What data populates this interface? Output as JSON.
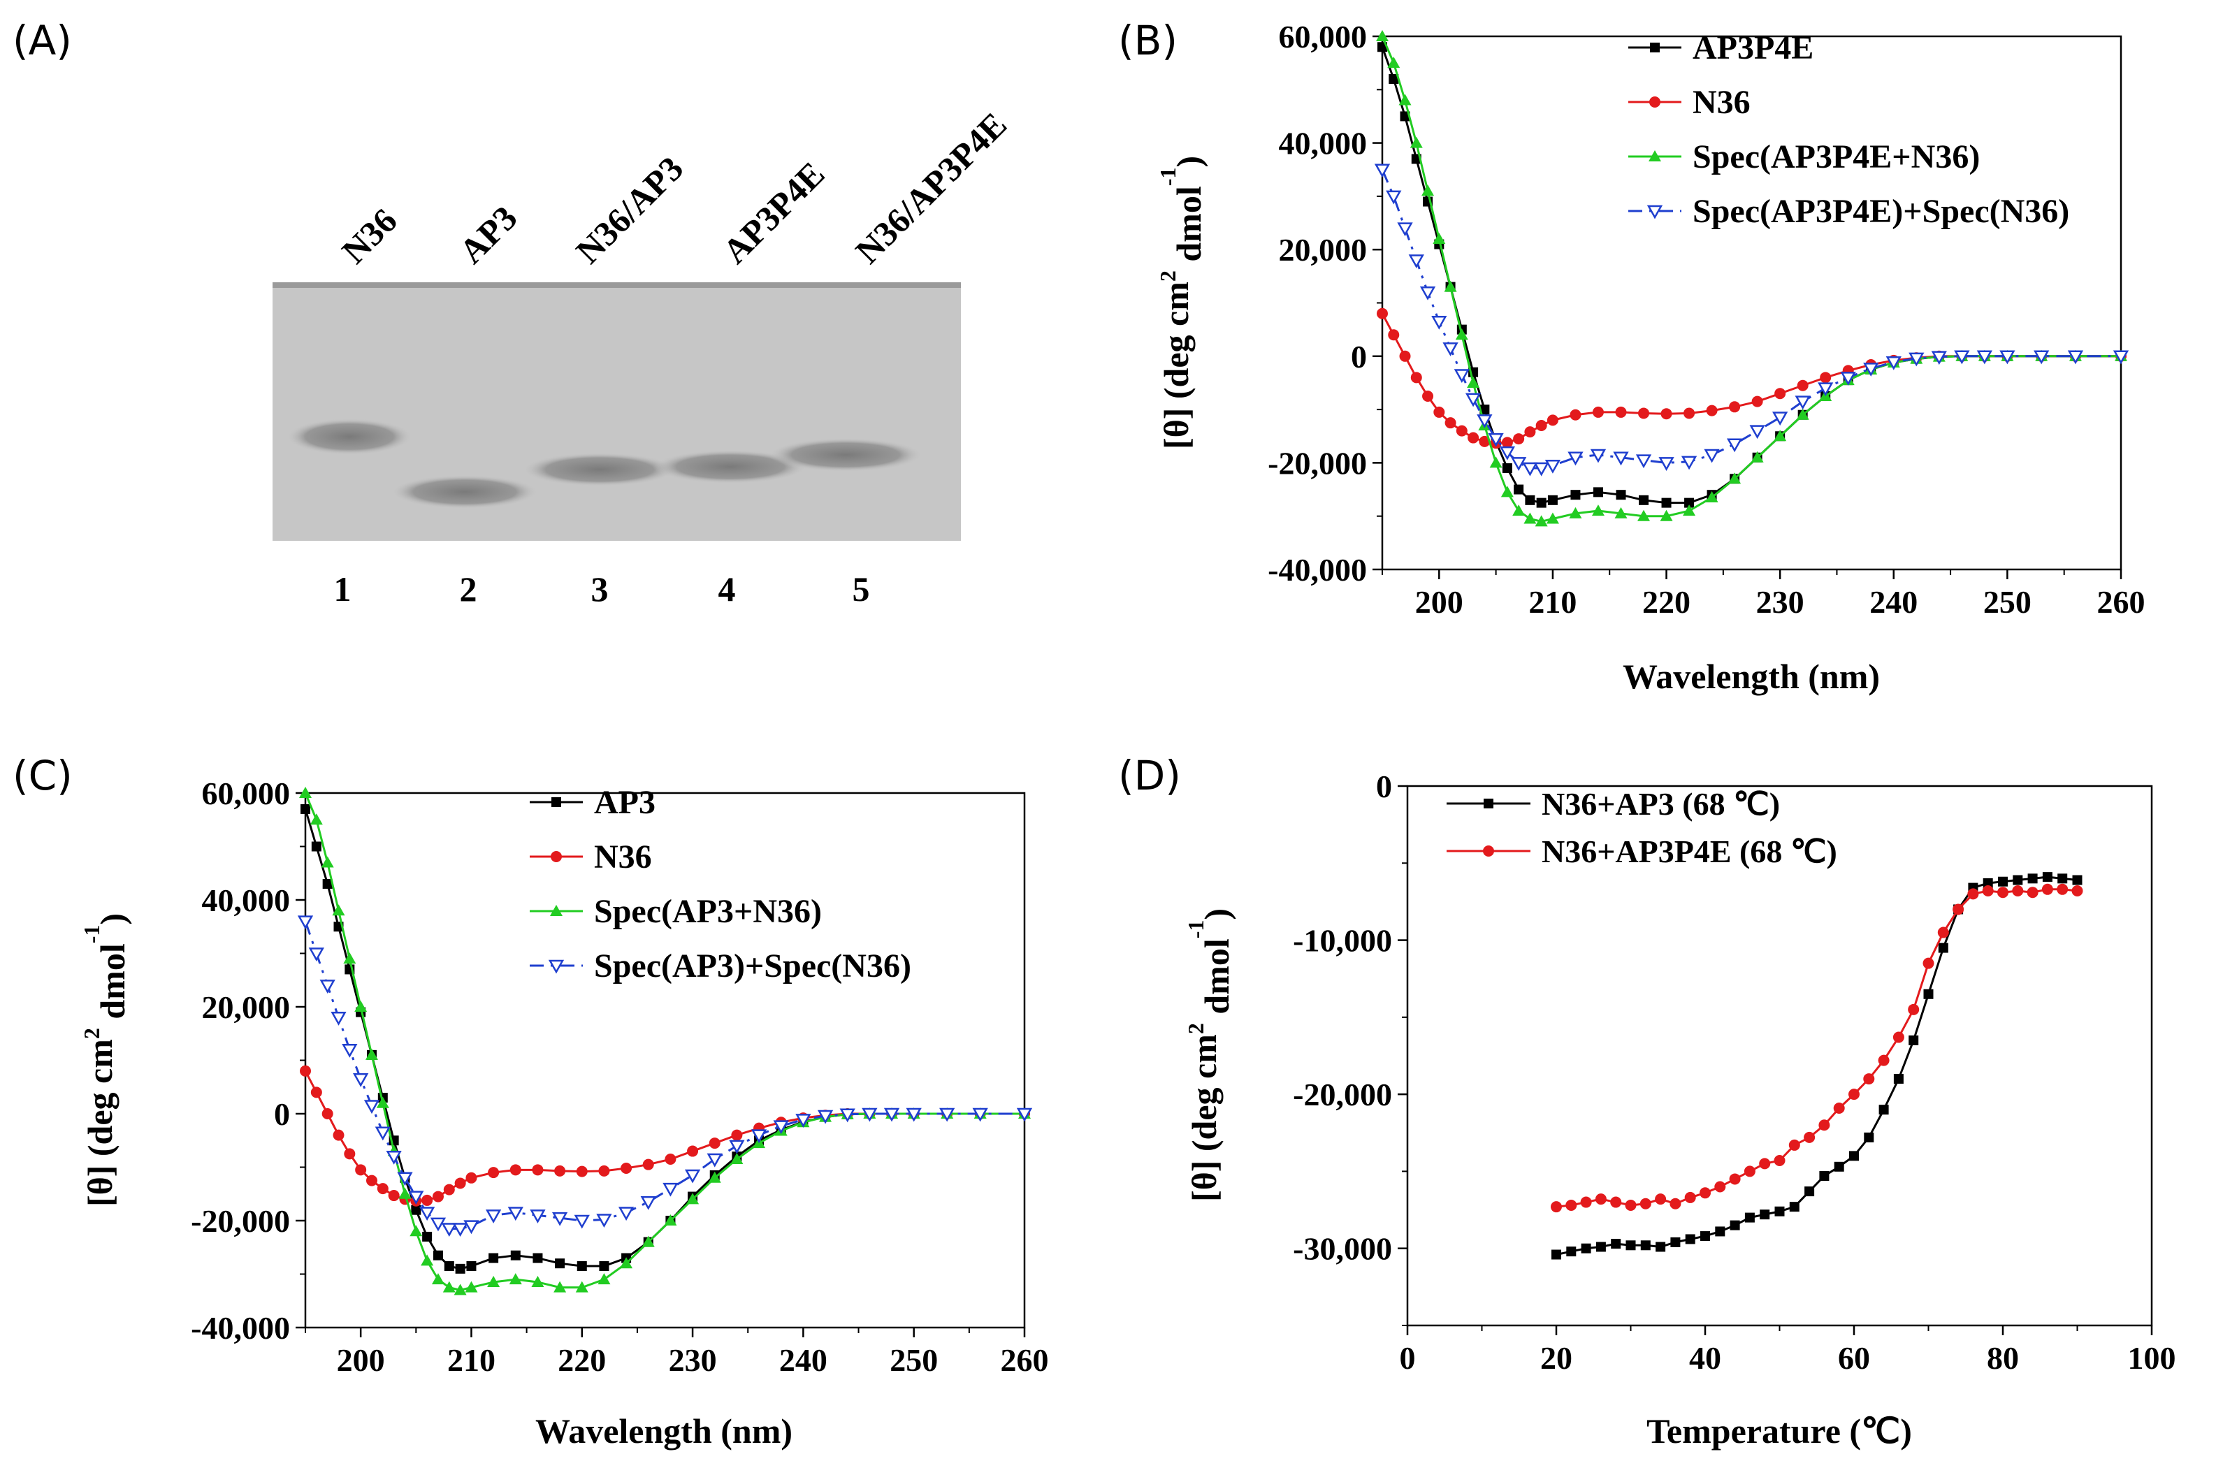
{
  "panels": {
    "A": {
      "label": "(A)",
      "lanes": [
        "N36",
        "AP3",
        "N36/AP3",
        "AP3P4E",
        "N36/AP3P4E"
      ],
      "lane_numbers": [
        "1",
        "2",
        "3",
        "4",
        "5"
      ]
    },
    "B": {
      "label": "(B)"
    },
    "C": {
      "label": "(C)"
    },
    "D": {
      "label": "(D)"
    }
  },
  "colors": {
    "black": "#000000",
    "red": "#e31a1c",
    "green": "#22cc22",
    "blue": "#1f3fcf",
    "gel_bg": "#c6c6c6",
    "gel_band": "#8a8a8a"
  },
  "chart_data": [
    {
      "id": "B",
      "type": "line",
      "xlabel": "Wavelength (nm)",
      "ylabel": "[θ] (deg cm² dmol⁻¹)",
      "xlim": [
        195,
        260
      ],
      "ylim": [
        -40000,
        60000
      ],
      "xticks": [
        "200",
        "210",
        "220",
        "230",
        "240",
        "250",
        "260"
      ],
      "yticks": [
        "-40,000",
        "-20,000",
        "0",
        "20,000",
        "40,000",
        "60,000"
      ],
      "legend_position": "top-right",
      "series": [
        {
          "name": "AP3P4E",
          "color": "black",
          "marker": "square",
          "x": [
            195,
            196,
            197,
            198,
            199,
            200,
            201,
            202,
            203,
            204,
            205,
            206,
            207,
            208,
            209,
            210,
            212,
            214,
            216,
            218,
            220,
            222,
            224,
            226,
            228,
            230,
            232,
            234,
            236,
            238,
            240,
            242,
            244,
            246,
            248,
            250,
            253,
            256,
            260
          ],
          "y": [
            58000,
            52000,
            45000,
            37000,
            29000,
            21000,
            13000,
            5000,
            -3000,
            -10000,
            -16000,
            -21000,
            -25000,
            -27000,
            -27500,
            -27000,
            -26000,
            -25500,
            -26000,
            -27000,
            -27500,
            -27500,
            -26000,
            -23000,
            -19000,
            -15000,
            -11000,
            -7500,
            -4500,
            -2500,
            -1200,
            -500,
            -100,
            0,
            0,
            0,
            0,
            0,
            0
          ]
        },
        {
          "name": "N36",
          "color": "red",
          "marker": "circle",
          "x": [
            195,
            196,
            197,
            198,
            199,
            200,
            201,
            202,
            203,
            204,
            205,
            206,
            207,
            208,
            209,
            210,
            212,
            214,
            216,
            218,
            220,
            222,
            224,
            226,
            228,
            230,
            232,
            234,
            236,
            238,
            240,
            242,
            244,
            246,
            248,
            250,
            253,
            256,
            260
          ],
          "y": [
            8000,
            4000,
            0,
            -4000,
            -7500,
            -10500,
            -12500,
            -14000,
            -15300,
            -16000,
            -16300,
            -16200,
            -15500,
            -14200,
            -13000,
            -12000,
            -11000,
            -10500,
            -10500,
            -10700,
            -10800,
            -10700,
            -10200,
            -9500,
            -8500,
            -7000,
            -5500,
            -4000,
            -2700,
            -1600,
            -800,
            -300,
            0,
            0,
            0,
            0,
            0,
            0,
            0
          ]
        },
        {
          "name": "Spec(AP3P4E+N36)",
          "color": "green",
          "marker": "triangle-up",
          "x": [
            195,
            196,
            197,
            198,
            199,
            200,
            201,
            202,
            203,
            204,
            205,
            206,
            207,
            208,
            209,
            210,
            212,
            214,
            216,
            218,
            220,
            222,
            224,
            226,
            228,
            230,
            232,
            234,
            236,
            238,
            240,
            242,
            244,
            246,
            248,
            250,
            253,
            256,
            260
          ],
          "y": [
            60000,
            55000,
            48000,
            40000,
            31000,
            22000,
            13000,
            4000,
            -5000,
            -13000,
            -20000,
            -25500,
            -29000,
            -30500,
            -31000,
            -30500,
            -29500,
            -29000,
            -29500,
            -30000,
            -30000,
            -29000,
            -26500,
            -23000,
            -19000,
            -15000,
            -11000,
            -7500,
            -4500,
            -2500,
            -1200,
            -500,
            -100,
            0,
            0,
            0,
            0,
            0,
            0
          ]
        },
        {
          "name": "Spec(AP3P4E)+Spec(N36)",
          "color": "blue",
          "marker": "triangle-down-open",
          "x": [
            195,
            196,
            197,
            198,
            199,
            200,
            201,
            202,
            203,
            204,
            205,
            206,
            207,
            208,
            209,
            210,
            212,
            214,
            216,
            218,
            220,
            222,
            224,
            226,
            228,
            230,
            232,
            234,
            236,
            238,
            240,
            242,
            244,
            246,
            248,
            250,
            253,
            256,
            260
          ],
          "y": [
            35000,
            30000,
            24000,
            18000,
            12000,
            6500,
            1500,
            -3500,
            -8000,
            -12000,
            -15500,
            -18000,
            -20000,
            -21000,
            -21000,
            -20500,
            -19000,
            -18500,
            -19000,
            -19500,
            -20000,
            -19800,
            -18500,
            -16500,
            -14000,
            -11500,
            -8500,
            -6000,
            -4000,
            -2300,
            -1100,
            -400,
            -100,
            0,
            0,
            0,
            0,
            0,
            0
          ]
        }
      ]
    },
    {
      "id": "C",
      "type": "line",
      "xlabel": "Wavelength (nm)",
      "ylabel": "[θ] (deg cm² dmol⁻¹)",
      "xlim": [
        195,
        260
      ],
      "ylim": [
        -40000,
        60000
      ],
      "xticks": [
        "200",
        "210",
        "220",
        "230",
        "240",
        "250",
        "260"
      ],
      "yticks": [
        "-40,000",
        "-20,000",
        "0",
        "20,000",
        "40,000",
        "60,000"
      ],
      "legend_position": "top-right",
      "series": [
        {
          "name": "AP3",
          "color": "black",
          "marker": "square",
          "x": [
            195,
            196,
            197,
            198,
            199,
            200,
            201,
            202,
            203,
            204,
            205,
            206,
            207,
            208,
            209,
            210,
            212,
            214,
            216,
            218,
            220,
            222,
            224,
            226,
            228,
            230,
            232,
            234,
            236,
            238,
            240,
            242,
            244,
            246,
            248,
            250,
            253,
            256,
            260
          ],
          "y": [
            57000,
            50000,
            43000,
            35000,
            27000,
            19000,
            11000,
            3000,
            -5000,
            -12000,
            -18000,
            -23000,
            -26500,
            -28500,
            -29000,
            -28500,
            -27000,
            -26500,
            -27000,
            -28000,
            -28500,
            -28500,
            -27000,
            -24000,
            -20000,
            -15500,
            -11500,
            -8000,
            -5000,
            -3000,
            -1500,
            -600,
            -100,
            0,
            0,
            0,
            0,
            0,
            0
          ]
        },
        {
          "name": "N36",
          "color": "red",
          "marker": "circle",
          "x": [
            195,
            196,
            197,
            198,
            199,
            200,
            201,
            202,
            203,
            204,
            205,
            206,
            207,
            208,
            209,
            210,
            212,
            214,
            216,
            218,
            220,
            222,
            224,
            226,
            228,
            230,
            232,
            234,
            236,
            238,
            240,
            242,
            244,
            246,
            248,
            250,
            253,
            256,
            260
          ],
          "y": [
            8000,
            4000,
            0,
            -4000,
            -7500,
            -10500,
            -12500,
            -14000,
            -15300,
            -16000,
            -16300,
            -16200,
            -15500,
            -14200,
            -13000,
            -12000,
            -11000,
            -10500,
            -10500,
            -10700,
            -10800,
            -10700,
            -10200,
            -9500,
            -8500,
            -7000,
            -5500,
            -4000,
            -2700,
            -1600,
            -800,
            -300,
            0,
            0,
            0,
            0,
            0,
            0,
            0
          ]
        },
        {
          "name": "Spec(AP3+N36)",
          "color": "green",
          "marker": "triangle-up",
          "x": [
            195,
            196,
            197,
            198,
            199,
            200,
            201,
            202,
            203,
            204,
            205,
            206,
            207,
            208,
            209,
            210,
            212,
            214,
            216,
            218,
            220,
            222,
            224,
            226,
            228,
            230,
            232,
            234,
            236,
            238,
            240,
            242,
            244,
            246,
            248,
            250,
            253,
            256,
            260
          ],
          "y": [
            60000,
            55000,
            47000,
            38000,
            29000,
            20000,
            11000,
            2000,
            -7000,
            -15000,
            -22000,
            -27500,
            -31000,
            -32500,
            -33000,
            -32500,
            -31500,
            -31000,
            -31500,
            -32500,
            -32500,
            -31000,
            -28000,
            -24000,
            -20000,
            -16000,
            -12000,
            -8500,
            -5500,
            -3200,
            -1600,
            -600,
            -100,
            0,
            0,
            0,
            0,
            0,
            0
          ]
        },
        {
          "name": "Spec(AP3)+Spec(N36)",
          "color": "blue",
          "marker": "triangle-down-open",
          "x": [
            195,
            196,
            197,
            198,
            199,
            200,
            201,
            202,
            203,
            204,
            205,
            206,
            207,
            208,
            209,
            210,
            212,
            214,
            216,
            218,
            220,
            222,
            224,
            226,
            228,
            230,
            232,
            234,
            236,
            238,
            240,
            242,
            244,
            246,
            248,
            250,
            253,
            256,
            260
          ],
          "y": [
            36000,
            30000,
            24000,
            18000,
            12000,
            6500,
            1500,
            -3500,
            -8000,
            -12000,
            -15500,
            -18500,
            -20500,
            -21500,
            -21500,
            -21000,
            -19000,
            -18500,
            -19000,
            -19500,
            -20000,
            -19800,
            -18500,
            -16500,
            -14000,
            -11500,
            -8500,
            -6000,
            -4000,
            -2300,
            -1100,
            -400,
            -100,
            0,
            0,
            0,
            0,
            0,
            0
          ]
        }
      ]
    },
    {
      "id": "D",
      "type": "line",
      "xlabel": "Temperature (℃)",
      "ylabel": "[θ] (deg cm² dmol⁻¹)",
      "xlim": [
        0,
        100
      ],
      "ylim": [
        -35000,
        0
      ],
      "xticks": [
        "0",
        "20",
        "40",
        "60",
        "80",
        "100"
      ],
      "yticks": [
        "-30,000",
        "-20,000",
        "-10,000",
        "0"
      ],
      "legend_position": "top-left",
      "series": [
        {
          "name": "N36+AP3 (68 ℃)",
          "color": "black",
          "marker": "square",
          "x": [
            20,
            22,
            24,
            26,
            28,
            30,
            32,
            34,
            36,
            38,
            40,
            42,
            44,
            46,
            48,
            50,
            52,
            54,
            56,
            58,
            60,
            62,
            64,
            66,
            68,
            70,
            72,
            74,
            76,
            78,
            80,
            82,
            84,
            86,
            88,
            90
          ],
          "y": [
            -30400,
            -30200,
            -30000,
            -29900,
            -29700,
            -29800,
            -29800,
            -29900,
            -29600,
            -29400,
            -29200,
            -28900,
            -28500,
            -28000,
            -27800,
            -27600,
            -27300,
            -26300,
            -25300,
            -24700,
            -24000,
            -22800,
            -21000,
            -19000,
            -16500,
            -13500,
            -10500,
            -8000,
            -6600,
            -6300,
            -6200,
            -6100,
            -6000,
            -5900,
            -6000,
            -6100
          ]
        },
        {
          "name": "N36+AP3P4E (68 ℃)",
          "color": "red",
          "marker": "circle",
          "x": [
            20,
            22,
            24,
            26,
            28,
            30,
            32,
            34,
            36,
            38,
            40,
            42,
            44,
            46,
            48,
            50,
            52,
            54,
            56,
            58,
            60,
            62,
            64,
            66,
            68,
            70,
            72,
            74,
            76,
            78,
            80,
            82,
            84,
            86,
            88,
            90
          ],
          "y": [
            -27300,
            -27200,
            -27000,
            -26800,
            -27000,
            -27200,
            -27100,
            -26800,
            -27100,
            -26700,
            -26400,
            -26000,
            -25500,
            -25000,
            -24500,
            -24300,
            -23300,
            -22800,
            -22000,
            -20900,
            -20000,
            -19000,
            -17800,
            -16300,
            -14500,
            -11500,
            -9500,
            -8000,
            -7000,
            -6800,
            -6900,
            -6800,
            -6900,
            -6700,
            -6700,
            -6800
          ]
        }
      ]
    }
  ]
}
